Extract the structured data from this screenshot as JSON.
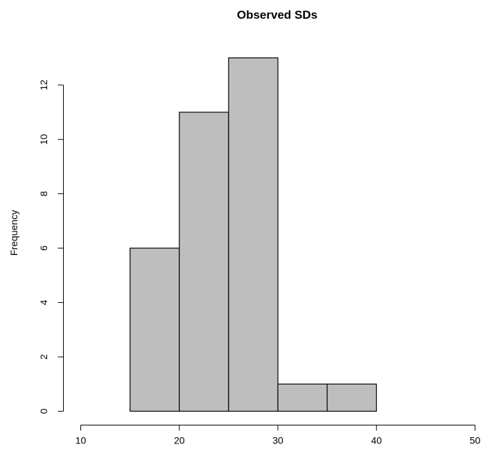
{
  "chart_data": {
    "type": "bar",
    "title": "Observed SDs",
    "xlabel": "",
    "ylabel": "Frequency",
    "bins": [
      {
        "start": 15,
        "end": 20,
        "count": 6
      },
      {
        "start": 20,
        "end": 25,
        "count": 11
      },
      {
        "start": 25,
        "end": 30,
        "count": 13
      },
      {
        "start": 30,
        "end": 35,
        "count": 1
      },
      {
        "start": 35,
        "end": 40,
        "count": 1
      }
    ],
    "xlim": [
      10,
      50
    ],
    "ylim": [
      0,
      13
    ],
    "x_ticks": [
      "10",
      "20",
      "30",
      "40",
      "50"
    ],
    "y_ticks": [
      "0",
      "2",
      "4",
      "6",
      "8",
      "10",
      "12"
    ],
    "grid": false,
    "colors": {
      "bar_fill": "#bebebe",
      "bar_stroke": "#000000",
      "axis": "#000000"
    }
  }
}
